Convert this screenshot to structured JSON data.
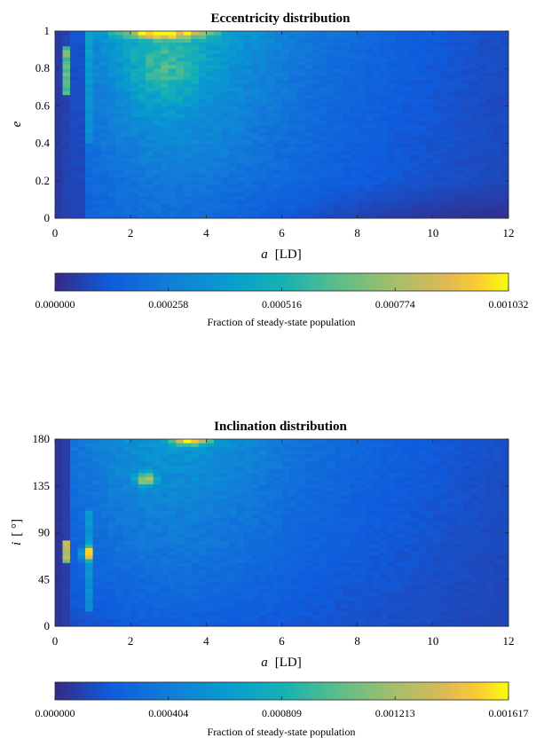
{
  "chart_data": [
    {
      "type": "heatmap",
      "title": "Eccentricity distribution",
      "xlabel_var": "a",
      "xlabel_unit": "[LD]",
      "ylabel_var": "e",
      "ylabel_unit": "",
      "xlim": [
        0,
        12
      ],
      "ylim": [
        0,
        1
      ],
      "x_ticks": [
        0,
        2,
        4,
        6,
        8,
        10,
        12
      ],
      "x_tick_labels": [
        "0",
        "2",
        "4",
        "6",
        "8",
        "10",
        "12"
      ],
      "y_ticks": [
        0,
        0.2,
        0.4,
        0.6,
        0.8,
        1
      ],
      "y_tick_labels": [
        "0",
        "0.2",
        "0.4",
        "0.6",
        "0.8",
        "1"
      ],
      "colormap": "parula",
      "color_range": [
        0,
        0.001032
      ],
      "colorbar_ticks": [
        "0.000000",
        "0.000258",
        "0.000516",
        "0.000774",
        "0.001032"
      ],
      "colorbar_label": "Fraction of steady-state population",
      "grid": {
        "nx": 60,
        "ny": 50
      },
      "features": [
        {
          "x": 3.0,
          "y": 0.97,
          "value": 0.00098
        },
        {
          "x": 2.0,
          "y": 0.99,
          "value": 0.0009
        },
        {
          "x": 4.0,
          "y": 0.99,
          "value": 0.00085
        },
        {
          "x": 0.25,
          "y": 0.86,
          "value": 0.0007
        },
        {
          "x": 2.8,
          "y": 0.8,
          "value": 0.00045
        },
        {
          "x": 3.5,
          "y": 0.65,
          "value": 0.00035
        },
        {
          "x": 0.85,
          "y": 0.85,
          "value": 0.0004
        },
        {
          "x": 6.0,
          "y": 0.6,
          "value": 0.0002
        },
        {
          "x": 10.0,
          "y": 0.5,
          "value": 0.00013
        },
        {
          "x": 11.5,
          "y": 0.1,
          "value": 5e-05
        }
      ]
    },
    {
      "type": "heatmap",
      "title": "Inclination distribution",
      "xlabel_var": "a",
      "xlabel_unit": "[LD]",
      "ylabel_var": "i",
      "ylabel_unit": "[ °]",
      "xlim": [
        0,
        12
      ],
      "ylim": [
        0,
        180
      ],
      "x_ticks": [
        0,
        2,
        4,
        6,
        8,
        10,
        12
      ],
      "x_tick_labels": [
        "0",
        "2",
        "4",
        "6",
        "8",
        "10",
        "12"
      ],
      "y_ticks": [
        0,
        45,
        90,
        135,
        180
      ],
      "y_tick_labels": [
        "0",
        "45",
        "90",
        "135",
        "180"
      ],
      "colormap": "parula",
      "color_range": [
        0,
        0.001617
      ],
      "colorbar_ticks": [
        "0.000000",
        "0.000404",
        "0.000809",
        "0.001213",
        "0.001617"
      ],
      "colorbar_label": "Fraction of steady-state population",
      "grid": {
        "nx": 60,
        "ny": 50
      },
      "features": [
        {
          "x": 3.6,
          "y": 177,
          "value": 0.0015
        },
        {
          "x": 2.4,
          "y": 142,
          "value": 0.001
        },
        {
          "x": 0.85,
          "y": 70,
          "value": 0.0016
        },
        {
          "x": 0.25,
          "y": 70,
          "value": 0.0012
        },
        {
          "x": 3.0,
          "y": 150,
          "value": 0.0006
        },
        {
          "x": 1.5,
          "y": 100,
          "value": 0.0005
        },
        {
          "x": 6.0,
          "y": 130,
          "value": 0.0004
        },
        {
          "x": 10.0,
          "y": 100,
          "value": 0.00025
        },
        {
          "x": 11.5,
          "y": 20,
          "value": 0.00012
        }
      ]
    }
  ]
}
